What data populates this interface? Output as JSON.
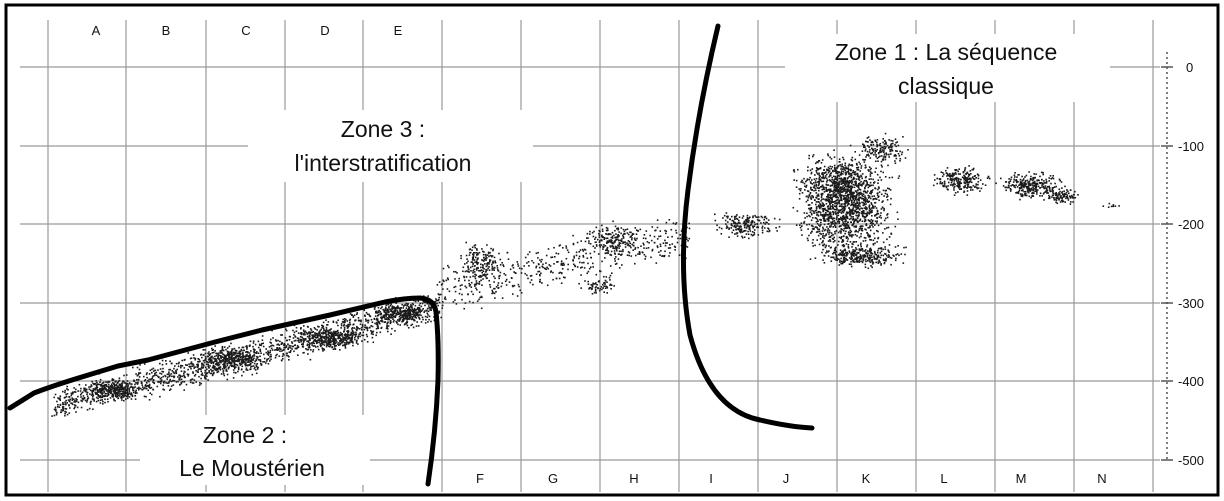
{
  "columns_top": [
    "A",
    "B",
    "C",
    "D",
    "E"
  ],
  "columns_bottom": [
    "F",
    "G",
    "H",
    "I",
    "J",
    "K",
    "L",
    "M",
    "N"
  ],
  "depths": [
    "0",
    "-100",
    "-200",
    "-300",
    "-400",
    "-500"
  ],
  "zones": {
    "zone1": {
      "line1": "Zone 1 : La séquence",
      "line2": "classique"
    },
    "zone2": {
      "line1": "Zone 2 :",
      "line2": "Le Moustérien"
    },
    "zone3": {
      "line1": "Zone 3 :",
      "line2": "l'interstratification"
    }
  },
  "colors": {
    "line": "#000000",
    "grid": "#9a9a9a",
    "dots": "#1a1a1a",
    "background": "#ffffff"
  }
}
